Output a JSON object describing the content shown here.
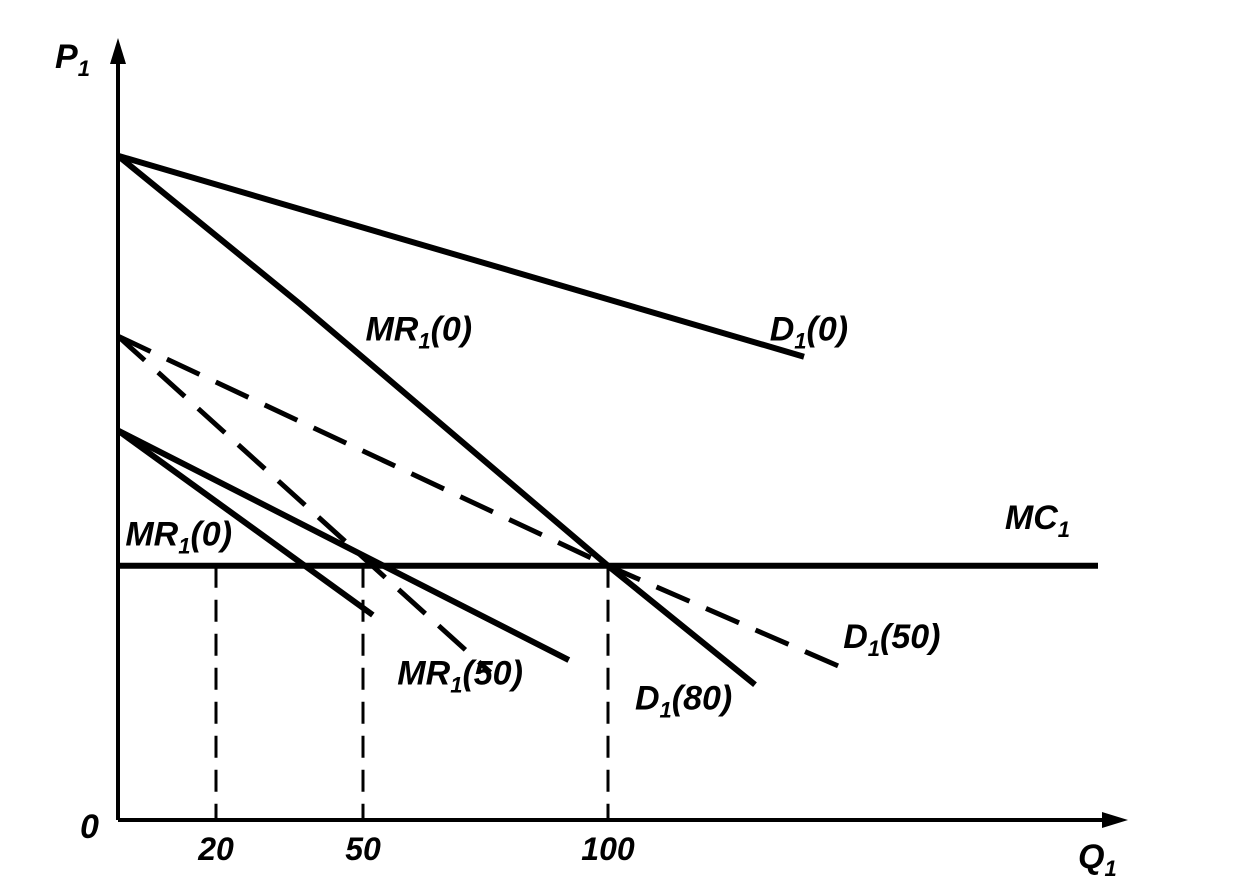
{
  "chart_data": {
    "type": "line",
    "title": "",
    "ylabel": {
      "main": "P",
      "sub": "1"
    },
    "xlabel": {
      "main": "Q",
      "sub": "1"
    },
    "origin_label": "0",
    "x_ticks": [
      {
        "value": 20,
        "label": "20"
      },
      {
        "value": 50,
        "label": "50"
      },
      {
        "value": 100,
        "label": "100"
      }
    ],
    "xlim": [
      0,
      200
    ],
    "ylim": [
      0,
      100
    ],
    "grid": false,
    "series": [
      {
        "key": "d0",
        "style": "solid",
        "points": [
          [
            0,
            81
          ],
          [
            140,
            56.5
          ]
        ]
      },
      {
        "key": "mr0_top",
        "style": "solid",
        "points": [
          [
            0,
            81
          ],
          [
            37,
            63
          ],
          [
            100,
            31
          ],
          [
            130,
            16.5
          ]
        ]
      },
      {
        "key": "d50",
        "style": "dashed",
        "points": [
          [
            0,
            59
          ],
          [
            100,
            31
          ],
          [
            150,
            18
          ]
        ]
      },
      {
        "key": "mr50",
        "style": "dashed",
        "points": [
          [
            0,
            59
          ],
          [
            76,
            18
          ]
        ]
      },
      {
        "key": "d80",
        "style": "solid",
        "points": [
          [
            0,
            47.5
          ],
          [
            92,
            19.5
          ]
        ]
      },
      {
        "key": "mr0_low",
        "style": "solid",
        "points": [
          [
            0,
            47.5
          ],
          [
            52,
            25
          ]
        ]
      },
      {
        "key": "mc",
        "style": "solid",
        "points": [
          [
            0,
            31
          ],
          [
            200,
            31
          ]
        ]
      }
    ],
    "drop_lines": [
      {
        "x": 20,
        "y": 31
      },
      {
        "x": 50,
        "y": 31
      },
      {
        "x": 100,
        "y": 31
      }
    ],
    "labels": [
      {
        "key": "mr0_top",
        "main": "MR",
        "sub": "1",
        "rest": "(0)",
        "x": 50.5,
        "y": 58.5
      },
      {
        "key": "d0",
        "main": "D",
        "sub": "1",
        "rest": "(0)",
        "x": 133,
        "y": 58.5
      },
      {
        "key": "mc",
        "main": "MC",
        "sub": "1",
        "rest": "",
        "x": 181,
        "y": 35.5
      },
      {
        "key": "mr0_low",
        "main": "MR",
        "sub": "1",
        "rest": "(0)",
        "x": 1.5,
        "y": 33.5
      },
      {
        "key": "d50",
        "main": "D",
        "sub": "1",
        "rest": "(50)",
        "x": 148,
        "y": 21
      },
      {
        "key": "mr50",
        "main": "MR",
        "sub": "1",
        "rest": "(50)",
        "x": 57,
        "y": 16.5
      },
      {
        "key": "d80",
        "main": "D",
        "sub": "1",
        "rest": "(80)",
        "x": 105.5,
        "y": 13.5
      }
    ]
  }
}
